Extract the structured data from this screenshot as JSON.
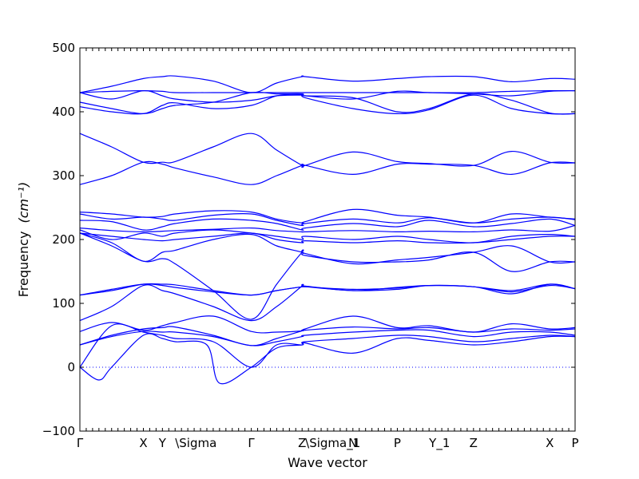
{
  "chart_data": {
    "type": "line",
    "title": "",
    "xlabel": "Wave vector",
    "ylabel": "Frequency",
    "ylabel_unit": "(cm⁻¹)",
    "ylim": [
      -100,
      500
    ],
    "yticks": [
      -100,
      0,
      100,
      200,
      300,
      400,
      500
    ],
    "x_ticks": [
      {
        "label": "Γ",
        "x": 0.0
      },
      {
        "label": "X",
        "x": 1.0
      },
      {
        "label": "Y",
        "x": 1.3
      },
      {
        "label": "\\Sigma",
        "x": 1.5
      },
      {
        "label": "Γ",
        "x": 2.7
      },
      {
        "label": "Z",
        "x": 3.5
      },
      {
        "label": "\\Sigma_1",
        "x": 3.55
      },
      {
        "label": "N",
        "x": 4.3
      },
      {
        "label": "P",
        "x": 5.0
      },
      {
        "label": "Y_1",
        "x": 5.5
      },
      {
        "label": "Z",
        "x": 6.2
      },
      {
        "label": "X",
        "x": 7.4
      },
      {
        "label": "P",
        "x": 7.8
      }
    ],
    "xlim": [
      0,
      7.8
    ],
    "line_color": "#0000ff",
    "zero_line_color": "#0000ff",
    "series": [
      {
        "x": [
          0,
          0.5,
          1.0,
          1.3,
          1.5,
          2.1,
          2.7,
          3.1,
          3.5,
          3.55,
          4.3,
          5.0,
          5.5,
          6.2,
          6.8,
          7.4,
          7.8
        ],
        "values": [
          430,
          440,
          452,
          455,
          456,
          448,
          430,
          445,
          455,
          455,
          448,
          452,
          455,
          455,
          447,
          452,
          451
        ]
      },
      {
        "x": [
          0,
          0.5,
          1.0,
          1.3,
          1.5,
          2.1,
          2.7,
          3.1,
          3.5,
          3.55,
          4.3,
          5.0,
          5.5,
          6.2,
          6.8,
          7.4,
          7.8
        ],
        "values": [
          430,
          432,
          433,
          432,
          430,
          430,
          430,
          430,
          430,
          430,
          430,
          430,
          430,
          430,
          432,
          433,
          433
        ]
      },
      {
        "x": [
          0,
          0.5,
          1.0,
          1.3,
          1.5,
          2.1,
          2.7,
          3.1,
          3.5,
          3.55,
          4.3,
          5.0,
          5.5,
          6.2,
          6.8,
          7.4,
          7.8
        ],
        "values": [
          430,
          420,
          433,
          425,
          420,
          415,
          418,
          425,
          426,
          425,
          420,
          432,
          430,
          428,
          425,
          432,
          433
        ]
      },
      {
        "x": [
          0,
          0.5,
          1.0,
          1.3,
          1.5,
          2.1,
          2.7,
          3.1,
          3.5,
          3.55,
          4.3,
          5.0,
          5.5,
          6.2,
          6.8,
          7.4,
          7.8
        ],
        "values": [
          415,
          405,
          397,
          405,
          410,
          415,
          430,
          428,
          428,
          425,
          422,
          400,
          405,
          428,
          418,
          398,
          397
        ]
      },
      {
        "x": [
          0,
          0.5,
          1.0,
          1.3,
          1.5,
          2.1,
          2.7,
          3.1,
          3.5,
          3.55,
          4.3,
          5.0,
          5.5,
          6.2,
          6.8,
          7.4,
          7.8
        ],
        "values": [
          408,
          400,
          397,
          410,
          414,
          405,
          410,
          425,
          427,
          422,
          405,
          397,
          403,
          426,
          405,
          397,
          397
        ]
      },
      {
        "x": [
          0,
          0.5,
          1.0,
          1.3,
          1.5,
          2.1,
          2.7,
          3.1,
          3.5,
          3.55,
          4.3,
          5.0,
          5.5,
          6.2,
          6.8,
          7.4,
          7.8
        ],
        "values": [
          366,
          345,
          321,
          321,
          322,
          345,
          366,
          340,
          316,
          316,
          337,
          322,
          319,
          316,
          338,
          321,
          320
        ]
      },
      {
        "x": [
          0,
          0.5,
          1.0,
          1.3,
          1.5,
          2.1,
          2.7,
          3.1,
          3.5,
          3.55,
          4.3,
          5.0,
          5.5,
          6.2,
          6.8,
          7.4,
          7.8
        ],
        "values": [
          286,
          300,
          321,
          318,
          312,
          298,
          286,
          300,
          316,
          316,
          302,
          318,
          318,
          316,
          302,
          320,
          320
        ]
      },
      {
        "x": [
          0,
          0.5,
          1.0,
          1.3,
          1.5,
          2.1,
          2.7,
          3.1,
          3.5,
          3.55,
          4.3,
          5.0,
          5.5,
          6.2,
          6.8,
          7.4,
          7.8
        ],
        "values": [
          243,
          240,
          235,
          236,
          240,
          245,
          243,
          232,
          226,
          228,
          247,
          238,
          235,
          226,
          240,
          235,
          232
        ]
      },
      {
        "x": [
          0,
          0.5,
          1.0,
          1.3,
          1.5,
          2.1,
          2.7,
          3.1,
          3.5,
          3.55,
          4.3,
          5.0,
          5.5,
          6.2,
          6.8,
          7.4,
          7.8
        ],
        "values": [
          240,
          232,
          235,
          232,
          230,
          238,
          240,
          230,
          222,
          225,
          232,
          226,
          234,
          226,
          232,
          235,
          231
        ]
      },
      {
        "x": [
          0,
          0.5,
          1.0,
          1.3,
          1.5,
          2.1,
          2.7,
          3.1,
          3.5,
          3.55,
          4.3,
          5.0,
          5.5,
          6.2,
          6.8,
          7.4,
          7.8
        ],
        "values": [
          230,
          228,
          215,
          220,
          225,
          232,
          230,
          225,
          215,
          218,
          225,
          220,
          230,
          220,
          225,
          232,
          222
        ]
      },
      {
        "x": [
          0,
          0.5,
          1.0,
          1.3,
          1.5,
          2.1,
          2.7,
          3.1,
          3.5,
          3.55,
          4.3,
          5.0,
          5.5,
          6.2,
          6.8,
          7.4,
          7.8
        ],
        "values": [
          218,
          214,
          212,
          213,
          214,
          216,
          218,
          214,
          212,
          212,
          214,
          212,
          213,
          212,
          215,
          213,
          222
        ]
      },
      {
        "x": [
          0,
          0.5,
          1.0,
          1.3,
          1.5,
          2.1,
          2.7,
          3.1,
          3.5,
          3.55,
          4.3,
          5.0,
          5.5,
          6.2,
          6.8,
          7.4,
          7.8
        ],
        "values": [
          215,
          200,
          210,
          205,
          210,
          215,
          210,
          205,
          200,
          205,
          200,
          205,
          200,
          195,
          205,
          208,
          205
        ]
      },
      {
        "x": [
          0,
          0.5,
          1.0,
          1.3,
          1.5,
          2.1,
          2.7,
          3.1,
          3.5,
          3.55,
          4.3,
          5.0,
          5.5,
          6.2,
          6.8,
          7.4,
          7.8
        ],
        "values": [
          210,
          205,
          200,
          198,
          200,
          205,
          210,
          200,
          195,
          198,
          195,
          198,
          195,
          195,
          200,
          205,
          205
        ]
      },
      {
        "x": [
          0,
          0.5,
          1.0,
          1.3,
          1.5,
          2.1,
          2.7,
          3.1,
          3.5,
          3.55,
          4.3,
          5.0,
          5.5,
          6.2,
          6.8,
          7.4,
          7.8
        ],
        "values": [
          210,
          195,
          166,
          180,
          183,
          200,
          208,
          190,
          180,
          175,
          165,
          165,
          168,
          180,
          150,
          165,
          165
        ]
      },
      {
        "x": [
          0,
          0.5,
          1.0,
          1.3,
          1.5,
          2.1,
          2.7,
          3.1,
          3.5,
          3.55,
          4.3,
          5.0,
          5.5,
          6.2,
          6.8,
          7.4,
          7.8
        ],
        "values": [
          210,
          190,
          166,
          170,
          162,
          120,
          75,
          130,
          180,
          178,
          162,
          168,
          172,
          180,
          190,
          165,
          165
        ]
      },
      {
        "x": [
          0,
          0.5,
          1.0,
          1.3,
          1.5,
          2.1,
          2.7,
          3.1,
          3.5,
          3.55,
          4.3,
          5.0,
          5.5,
          6.2,
          6.8,
          7.4,
          7.8
        ],
        "values": [
          113,
          120,
          130,
          130,
          129,
          120,
          113,
          120,
          126,
          126,
          122,
          124,
          128,
          126,
          120,
          130,
          123
        ]
      },
      {
        "x": [
          0,
          0.5,
          1.0,
          1.3,
          1.5,
          2.1,
          2.7,
          3.1,
          3.5,
          3.55,
          4.3,
          5.0,
          5.5,
          6.2,
          6.8,
          7.4,
          7.8
        ],
        "values": [
          113,
          122,
          130,
          128,
          125,
          118,
          113,
          120,
          126,
          126,
          120,
          122,
          128,
          126,
          118,
          128,
          123
        ]
      },
      {
        "x": [
          0,
          0.5,
          1.0,
          1.3,
          1.5,
          2.1,
          2.7,
          3.1,
          3.5,
          3.55,
          4.3,
          5.0,
          5.5,
          6.2,
          6.8,
          7.4,
          7.8
        ],
        "values": [
          73,
          95,
          128,
          120,
          115,
          95,
          73,
          95,
          127,
          127,
          120,
          125,
          128,
          126,
          115,
          130,
          123
        ]
      },
      {
        "x": [
          0,
          0.5,
          1.0,
          1.3,
          1.5,
          2.1,
          2.7,
          3.1,
          3.5,
          3.55,
          4.3,
          5.0,
          5.5,
          6.2,
          6.8,
          7.4,
          7.8
        ],
        "values": [
          56,
          70,
          58,
          65,
          70,
          80,
          56,
          55,
          57,
          60,
          80,
          62,
          65,
          55,
          68,
          60,
          62
        ]
      },
      {
        "x": [
          0,
          0.5,
          1.0,
          1.3,
          1.5,
          2.1,
          2.7,
          3.1,
          3.5,
          3.55,
          4.3,
          5.0,
          5.5,
          6.2,
          6.8,
          7.4,
          7.8
        ],
        "values": [
          35,
          50,
          60,
          62,
          63,
          50,
          34,
          45,
          57,
          58,
          63,
          60,
          62,
          55,
          60,
          58,
          60
        ]
      },
      {
        "x": [
          0,
          0.5,
          1.0,
          1.3,
          1.5,
          2.1,
          2.7,
          3.1,
          3.5,
          3.55,
          4.3,
          5.0,
          5.5,
          6.2,
          6.8,
          7.4,
          7.8
        ],
        "values": [
          35,
          48,
          56,
          55,
          55,
          48,
          34,
          40,
          48,
          50,
          55,
          58,
          58,
          48,
          55,
          55,
          50
        ]
      },
      {
        "x": [
          0,
          0.5,
          1.0,
          1.3,
          1.5,
          2.1,
          2.7,
          3.1,
          3.5,
          3.55,
          4.3,
          5.0,
          5.5,
          6.2,
          6.8,
          7.4,
          7.8
        ],
        "values": [
          0,
          65,
          55,
          50,
          45,
          40,
          0,
          35,
          35,
          40,
          45,
          50,
          48,
          40,
          45,
          50,
          48
        ]
      },
      {
        "x": [
          0,
          0.3,
          0.5,
          1.0,
          1.3,
          1.5,
          2.0,
          2.2,
          2.7,
          3.1,
          3.5,
          3.55,
          4.3,
          5.0,
          5.5,
          6.2,
          6.8,
          7.4,
          7.8
        ],
        "values": [
          0,
          -20,
          0,
          50,
          45,
          40,
          35,
          -25,
          0,
          30,
          35,
          38,
          22,
          45,
          42,
          35,
          40,
          48,
          48
        ]
      }
    ]
  }
}
